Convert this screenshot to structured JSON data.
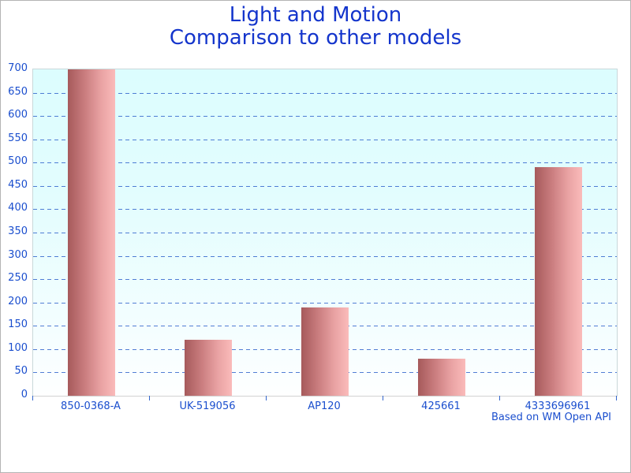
{
  "page": {
    "title_line1": "Light and Motion",
    "title_line2": "Comparison to other models",
    "footer_note": "Based on WM Open API"
  },
  "colors": {
    "title_text": "#1435cc",
    "axis_label_text": "#1a4ece",
    "gridline": "#3366cc",
    "bar_gradient_dark": "#a65a5b",
    "bar_gradient_light": "#fabbba",
    "plot_bg_top": "#dcfdfe",
    "plot_bg_bottom": "#feffff",
    "plot_border": "#c9d8da"
  },
  "chart_data": {
    "type": "bar",
    "title": "Light and Motion\nComparison to other models",
    "categories": [
      "850-0368-A",
      "UK-519056",
      "AP120",
      "425661",
      "4333696961"
    ],
    "values": [
      700,
      120,
      190,
      80,
      490
    ],
    "xlabel": "",
    "ylabel": "",
    "ylim": [
      0,
      700
    ],
    "ytick_step": 50,
    "grid": "horizontal-dashed",
    "legend_position": "none",
    "annotation": "Based on WM Open API"
  }
}
